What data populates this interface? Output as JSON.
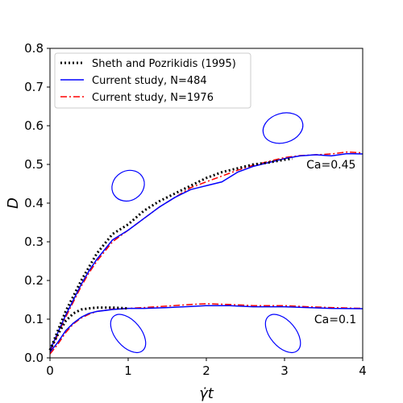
{
  "chart_data": {
    "type": "line",
    "xlabel": "γ̇t",
    "ylabel": "D",
    "xlim": [
      0,
      4
    ],
    "ylim": [
      0,
      0.8
    ],
    "xticks": [
      0,
      1,
      2,
      3,
      4
    ],
    "yticks": [
      0.0,
      0.1,
      0.2,
      0.3,
      0.4,
      0.5,
      0.6,
      0.7,
      0.8
    ],
    "xtick_labels": [
      "0",
      "1",
      "2",
      "3",
      "4"
    ],
    "ytick_labels": [
      "0.0",
      "0.1",
      "0.2",
      "0.3",
      "0.4",
      "0.5",
      "0.6",
      "0.7",
      "0.8"
    ],
    "legend_position": "top-left",
    "grid": false,
    "series": [
      {
        "name": "Sheth and Pozrikidis (1995)",
        "color": "#000000",
        "style": "dotted",
        "groups": [
          {
            "case": "Ca=0.45",
            "x": [
              0,
              0.1,
              0.2,
              0.3,
              0.4,
              0.5,
              0.6,
              0.8,
              1.0,
              1.2,
              1.4,
              1.6,
              1.8,
              2.0,
              2.2,
              2.4,
              2.6,
              2.8,
              3.0,
              3.1
            ],
            "y": [
              0.02,
              0.07,
              0.12,
              0.16,
              0.2,
              0.235,
              0.27,
              0.32,
              0.345,
              0.38,
              0.405,
              0.425,
              0.445,
              0.465,
              0.48,
              0.49,
              0.5,
              0.505,
              0.512,
              0.515
            ]
          },
          {
            "case": "Ca=0.1",
            "x": [
              0,
              0.1,
              0.2,
              0.3,
              0.4,
              0.5,
              0.6,
              0.7,
              0.8,
              1.0
            ],
            "y": [
              0.02,
              0.06,
              0.095,
              0.115,
              0.125,
              0.128,
              0.13,
              0.13,
              0.13,
              0.128
            ]
          }
        ]
      },
      {
        "name": "Current study, N=484",
        "color": "#0000ff",
        "style": "solid",
        "groups": [
          {
            "case": "Ca=0.45",
            "x": [
              0,
              0.1,
              0.2,
              0.3,
              0.4,
              0.5,
              0.6,
              0.8,
              1.0,
              1.2,
              1.4,
              1.6,
              1.8,
              2.0,
              2.2,
              2.4,
              2.6,
              2.8,
              3.0,
              3.2,
              3.4,
              3.6,
              3.8,
              4.0
            ],
            "y": [
              0.02,
              0.065,
              0.11,
              0.15,
              0.19,
              0.225,
              0.255,
              0.305,
              0.33,
              0.36,
              0.39,
              0.415,
              0.435,
              0.445,
              0.455,
              0.48,
              0.495,
              0.505,
              0.515,
              0.522,
              0.525,
              0.522,
              0.528,
              0.527
            ]
          },
          {
            "case": "Ca=0.1",
            "x": [
              0,
              0.1,
              0.2,
              0.3,
              0.4,
              0.5,
              0.6,
              0.8,
              1.0,
              1.2,
              1.5,
              1.8,
              2.0,
              2.3,
              2.6,
              3.0,
              3.3,
              3.6,
              4.0
            ],
            "y": [
              0.015,
              0.04,
              0.07,
              0.09,
              0.105,
              0.115,
              0.12,
              0.125,
              0.128,
              0.128,
              0.13,
              0.133,
              0.135,
              0.135,
              0.132,
              0.132,
              0.13,
              0.128,
              0.127
            ]
          }
        ]
      },
      {
        "name": "Current study, N=1976",
        "color": "#ff0000",
        "style": "dashdot",
        "groups": [
          {
            "case": "Ca=0.45",
            "x": [
              0,
              0.1,
              0.2,
              0.3,
              0.4,
              0.5,
              0.6,
              0.8,
              1.0,
              1.2,
              1.4,
              1.6,
              1.8,
              2.0,
              2.2,
              2.4,
              2.6,
              2.8,
              3.0,
              3.2,
              3.4,
              3.6,
              3.8,
              4.0
            ],
            "y": [
              0.015,
              0.06,
              0.105,
              0.145,
              0.185,
              0.22,
              0.25,
              0.3,
              0.33,
              0.36,
              0.39,
              0.415,
              0.44,
              0.455,
              0.47,
              0.485,
              0.498,
              0.508,
              0.518,
              0.523,
              0.525,
              0.527,
              0.532,
              0.53
            ]
          },
          {
            "case": "Ca=0.1",
            "x": [
              0,
              0.1,
              0.2,
              0.3,
              0.4,
              0.5,
              0.6,
              0.8,
              1.0,
              1.2,
              1.5,
              1.8,
              2.0,
              2.3,
              2.6,
              3.0,
              3.3,
              3.6,
              4.0
            ],
            "y": [
              0.01,
              0.035,
              0.065,
              0.088,
              0.103,
              0.113,
              0.12,
              0.126,
              0.128,
              0.13,
              0.134,
              0.138,
              0.14,
              0.138,
              0.135,
              0.135,
              0.132,
              0.13,
              0.128
            ]
          }
        ]
      }
    ],
    "annotations": [
      {
        "text": "Ca=0.45",
        "x": 3.28,
        "y": 0.49
      },
      {
        "text": "Ca=0.1",
        "x": 3.38,
        "y": 0.09
      }
    ],
    "drop_shapes": [
      {
        "cx": 1.0,
        "cy": 0.445,
        "rx": 0.43,
        "ry": 0.038,
        "angle": -33
      },
      {
        "cx": 2.98,
        "cy": 0.594,
        "rx": 0.52,
        "ry": 0.038,
        "angle": -17
      },
      {
        "cx": 1.0,
        "cy": 0.063,
        "rx": 0.33,
        "ry": 0.058,
        "angle": -40
      },
      {
        "cx": 2.98,
        "cy": 0.063,
        "rx": 0.33,
        "ry": 0.058,
        "angle": -40
      }
    ]
  }
}
